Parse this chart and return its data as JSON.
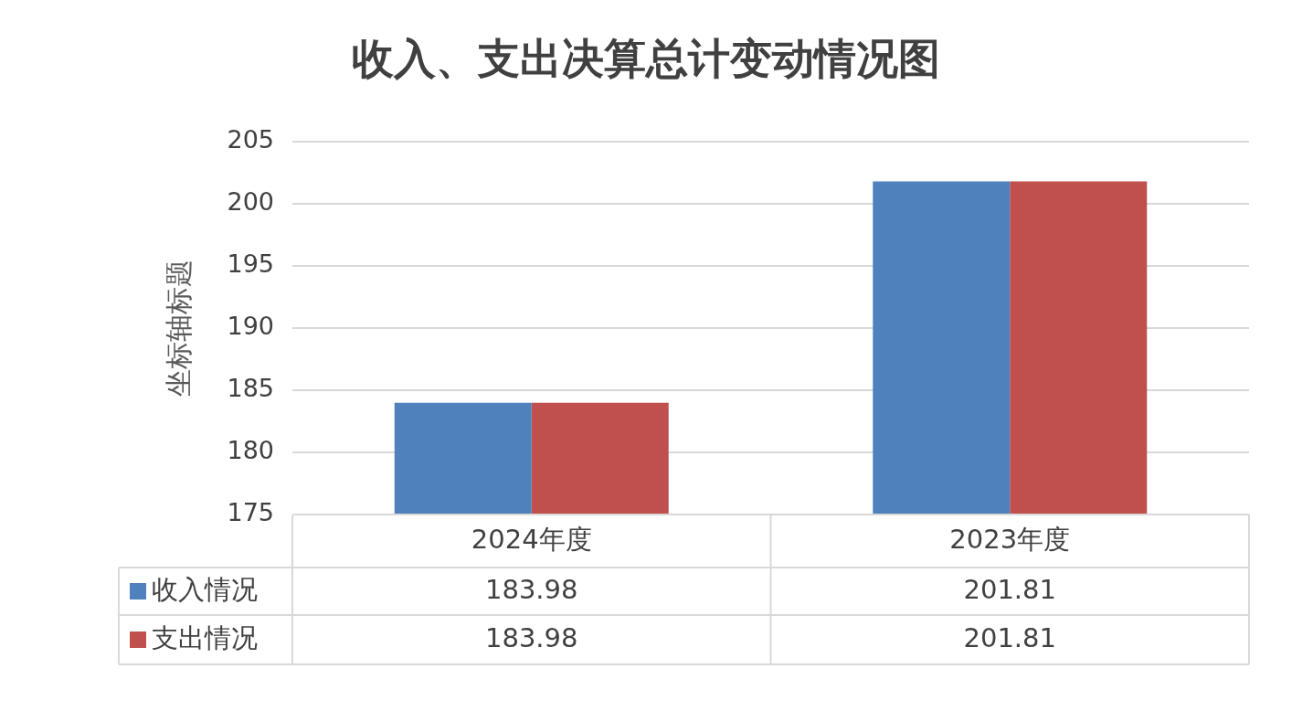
{
  "chart_data": {
    "type": "bar",
    "title": "收入、支出决算总计变动情况图",
    "ylabel": "坐标轴标题",
    "categories": [
      "2024年度",
      "2023年度"
    ],
    "series": [
      {
        "name": "收入情况",
        "color": "#4f81bd",
        "values": [
          183.98,
          201.81
        ]
      },
      {
        "name": "支出情况",
        "color": "#c0504d",
        "values": [
          183.98,
          201.81
        ]
      }
    ],
    "ylim": [
      175,
      205
    ],
    "yticks": [
      175,
      180,
      185,
      190,
      195,
      200,
      205
    ],
    "grid": "y",
    "legend": "bottom",
    "data_labels": true
  }
}
